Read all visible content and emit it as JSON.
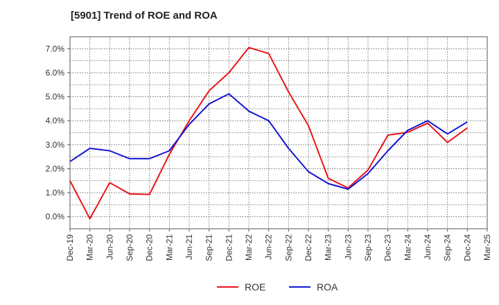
{
  "chart_data": {
    "type": "line",
    "title": "[5901]  Trend of ROE and ROA",
    "xlabel": "",
    "ylabel": "",
    "categories": [
      "Dec-19",
      "Mar-20",
      "Jun-20",
      "Sep-20",
      "Dec-20",
      "Mar-21",
      "Jun-21",
      "Sep-21",
      "Dec-21",
      "Mar-22",
      "Jun-22",
      "Sep-22",
      "Dec-22",
      "Mar-23",
      "Jun-23",
      "Sep-23",
      "Dec-23",
      "Mar-24",
      "Jun-24",
      "Sep-24",
      "Dec-24",
      "Mar-25"
    ],
    "ylim": [
      -0.5,
      7.5
    ],
    "yticks": [
      0,
      1,
      2,
      3,
      4,
      5,
      6,
      7
    ],
    "ytick_labels": [
      "0.0%",
      "1.0%",
      "2.0%",
      "3.0%",
      "4.0%",
      "5.0%",
      "6.0%",
      "7.0%"
    ],
    "grid": true,
    "legend_position": "bottom-center",
    "series": [
      {
        "name": "ROE",
        "color": "#e8141a",
        "values": [
          1.5,
          -0.08,
          1.42,
          0.95,
          0.93,
          2.6,
          4.0,
          5.25,
          6.0,
          7.05,
          6.8,
          5.2,
          3.8,
          1.6,
          1.2,
          1.95,
          3.4,
          3.52,
          3.9,
          3.1,
          3.7,
          null
        ]
      },
      {
        "name": "ROA",
        "color": "#1414d2",
        "values": [
          2.3,
          2.85,
          2.75,
          2.42,
          2.42,
          2.75,
          3.85,
          4.7,
          5.12,
          4.4,
          4.0,
          2.85,
          1.88,
          1.38,
          1.15,
          1.8,
          2.75,
          3.6,
          4.0,
          3.45,
          3.95,
          null
        ]
      }
    ]
  }
}
